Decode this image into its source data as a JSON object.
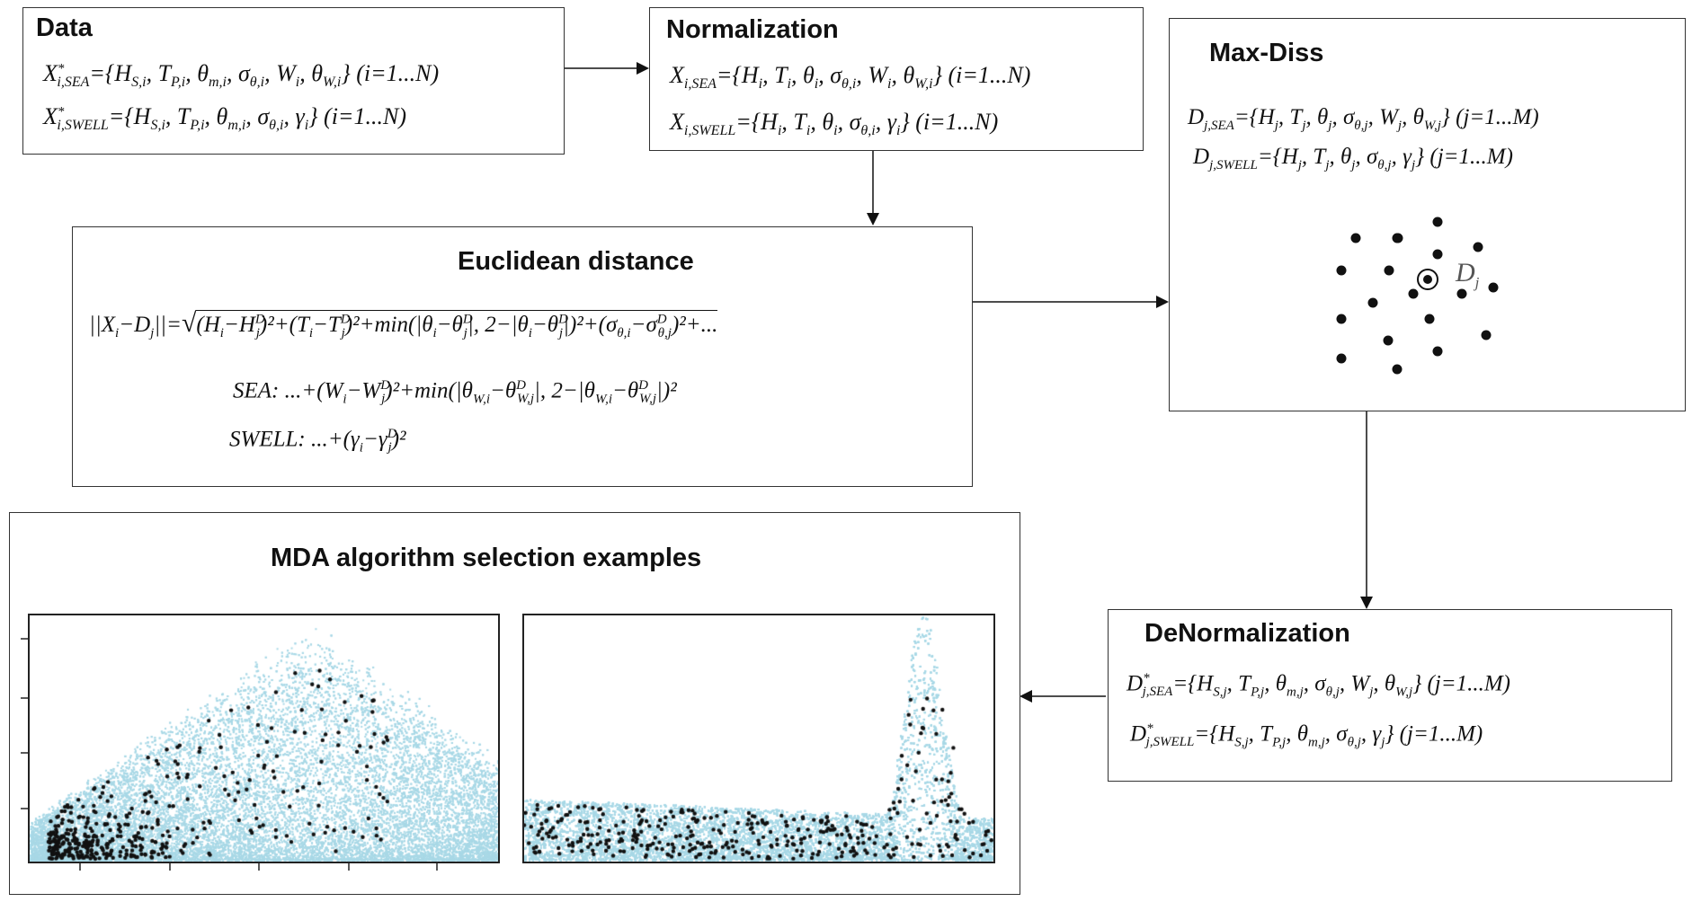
{
  "boxes": {
    "data": {
      "title": "Data",
      "eq1": "X*i,SEA={HS,i, TP,i, θm,i, σθ,i, Wi, θW,i} (i=1...N)",
      "eq2": "X*i,SWELL={HS,i, TP,i, θm,i, σθ,i, γi} (i=1...N)"
    },
    "normalization": {
      "title": "Normalization",
      "eq1": "Xi,SEA={Hi, Ti, θi, σθ,i, Wi, θW,i} (i=1...N)",
      "eq2": "Xi,SWELL={Hi, Ti, θi, σθ,i, γi} (i=1...N)"
    },
    "maxdiss": {
      "title": "Max-Diss",
      "eq1": "Dj,SEA={Hj, Tj, θj, σθ,j, Wj, θW,j} (j=1...M)",
      "eq2": "Dj,SWELL={Hj, Tj, θj, σθ,j, γj} (j=1...M)",
      "point_label": "Dj"
    },
    "euclidean": {
      "title": "Euclidean distance",
      "eq1": "||Xi−Dj||=√((Hi−HjD)²+(Ti−TjD)²+min(|θi−θjD|, 2−|θi−θjD|)²+(σθ,i−σθ,jD)²+...",
      "eq2": "SEA: ...+(Wi−WjD)²+min(|θW,i−θW,jD|, 2−|θW,i−θW,jD|)²",
      "eq3": "SWELL: ...+(γi−γjD)²"
    },
    "denormalization": {
      "title": "DeNormalization",
      "eq1": "D*j,SEA={HS,j, TP,j, θm,j, σθ,j, Wj, θW,j} (j=1...M)",
      "eq2": "D*j,SWELL={HS,j, TP,j, θm,j, σθ,j, γj} (j=1...M)"
    },
    "mda": {
      "title": "MDA algorithm selection examples"
    }
  },
  "colors": {
    "cloud": "#a8d8e6",
    "selected": "#111111",
    "border": "#333333"
  }
}
